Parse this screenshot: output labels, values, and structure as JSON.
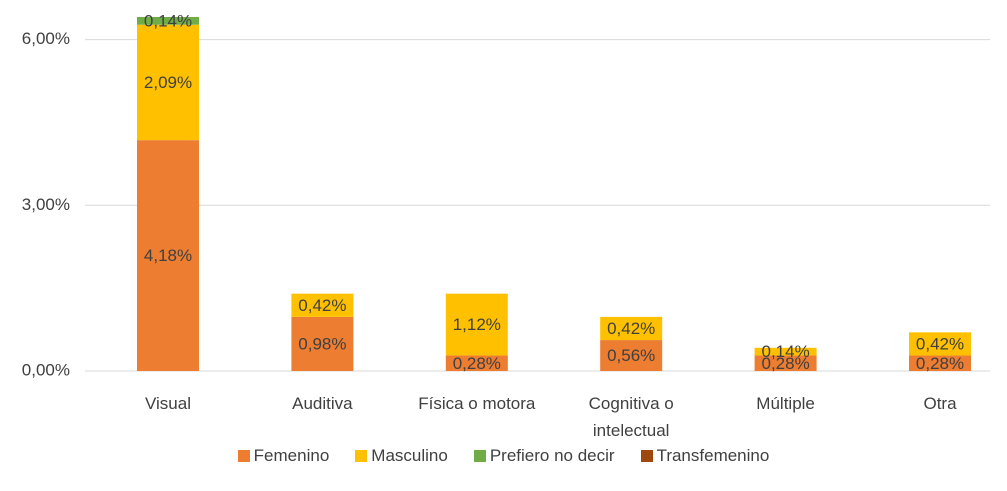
{
  "chart_data": {
    "type": "bar",
    "categories": [
      "Visual",
      "Auditiva",
      "Física o motora",
      "Cognitiva o intelectual",
      "Múltiple",
      "Otra"
    ],
    "series": [
      {
        "name": "Femenino",
        "color": "#ed7d31",
        "values": [
          4.18,
          0.98,
          0.28,
          0.56,
          0.28,
          0.28
        ],
        "value_labels": [
          "4,18%",
          "0,98%",
          "0,28%",
          "0,56%",
          "0,28%",
          "0,28%"
        ]
      },
      {
        "name": "Masculino",
        "color": "#ffc000",
        "values": [
          2.09,
          0.42,
          1.12,
          0.42,
          0.14,
          0.42
        ],
        "value_labels": [
          "2,09%",
          "0,42%",
          "1,12%",
          "0,42%",
          "0,14%",
          "0,42%"
        ]
      },
      {
        "name": "Prefiero no decir",
        "color": "#70ad47",
        "values": [
          0.14,
          null,
          null,
          null,
          null,
          null
        ],
        "value_labels": [
          "0,14%",
          null,
          null,
          null,
          null,
          null
        ]
      },
      {
        "name": "Transfemenino",
        "color": "#9e480e",
        "values": [
          null,
          null,
          null,
          null,
          null,
          null
        ]
      }
    ],
    "ylim": [
      0,
      6.5
    ],
    "yticks": [
      {
        "value": 0,
        "label": "0,00%"
      },
      {
        "value": 3,
        "label": "3,00%"
      },
      {
        "value": 6,
        "label": "6,00%"
      }
    ],
    "grid": true,
    "legend": "bottom",
    "stacked": true
  }
}
